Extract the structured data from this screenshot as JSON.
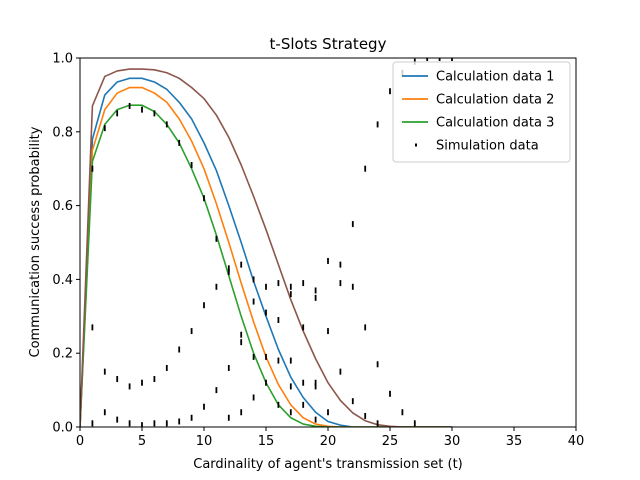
{
  "chart_data": {
    "type": "line",
    "title": "t-Slots Strategy",
    "xlabel": "Cardinality of agent's transmission set (t)",
    "ylabel": "Communication success probability",
    "xlim": [
      0,
      40
    ],
    "ylim": [
      0,
      1.0
    ],
    "xticks": [
      "0",
      "5",
      "10",
      "15",
      "20",
      "25",
      "30",
      "35",
      "40"
    ],
    "yticks": [
      "0.0",
      "0.2",
      "0.4",
      "0.6",
      "0.8",
      "1.0"
    ],
    "grid": false,
    "legend_position": "top-right",
    "series": [
      {
        "name": "Calculation data 1",
        "color": "#1f77b4",
        "x": [
          0,
          1,
          2,
          3,
          4,
          5,
          6,
          7,
          8,
          9,
          10,
          11,
          12,
          13,
          14,
          15,
          16,
          17,
          18,
          19,
          20,
          21,
          22,
          23,
          24,
          25,
          26,
          27,
          28,
          29,
          30
        ],
        "y": [
          0.0,
          0.78,
          0.9,
          0.935,
          0.945,
          0.945,
          0.935,
          0.915,
          0.88,
          0.835,
          0.77,
          0.695,
          0.6,
          0.5,
          0.395,
          0.3,
          0.21,
          0.135,
          0.08,
          0.04,
          0.015,
          0.005,
          0,
          0,
          0,
          0,
          0,
          0,
          0,
          0,
          0
        ]
      },
      {
        "name": "Calculation data 2",
        "color": "#ff7f0e",
        "x": [
          0,
          1,
          2,
          3,
          4,
          5,
          6,
          7,
          8,
          9,
          10,
          11,
          12,
          13,
          14,
          15,
          16,
          17,
          18,
          19,
          20,
          21,
          22,
          23,
          24,
          25,
          26,
          27,
          28,
          29,
          30
        ],
        "y": [
          0.0,
          0.75,
          0.86,
          0.905,
          0.92,
          0.92,
          0.905,
          0.88,
          0.835,
          0.775,
          0.7,
          0.605,
          0.5,
          0.39,
          0.285,
          0.19,
          0.115,
          0.06,
          0.025,
          0.008,
          0.002,
          0,
          0,
          0,
          0,
          0,
          0,
          0,
          0,
          0,
          0
        ]
      },
      {
        "name": "Calculation data 3",
        "color": "#2ca02c",
        "x": [
          0,
          1,
          2,
          3,
          4,
          5,
          6,
          7,
          8,
          9,
          10,
          11,
          12,
          13,
          14,
          15,
          16,
          17,
          18,
          19,
          20,
          21,
          22,
          23,
          24,
          25,
          26,
          27,
          28,
          29,
          30
        ],
        "y": [
          0.0,
          0.72,
          0.82,
          0.86,
          0.872,
          0.872,
          0.855,
          0.82,
          0.77,
          0.7,
          0.62,
          0.52,
          0.41,
          0.3,
          0.2,
          0.12,
          0.06,
          0.025,
          0.008,
          0.002,
          0,
          0,
          0,
          0,
          0,
          0,
          0,
          0,
          0,
          0,
          0
        ]
      },
      {
        "name": "",
        "color": "#8c564b",
        "x": [
          0,
          1,
          2,
          3,
          4,
          5,
          6,
          7,
          8,
          9,
          10,
          11,
          12,
          13,
          14,
          15,
          16,
          17,
          18,
          19,
          20,
          21,
          22,
          23,
          24,
          25,
          26,
          27,
          28,
          29,
          30
        ],
        "y": [
          0.0,
          0.87,
          0.95,
          0.965,
          0.97,
          0.97,
          0.968,
          0.96,
          0.945,
          0.92,
          0.89,
          0.845,
          0.785,
          0.71,
          0.625,
          0.535,
          0.44,
          0.345,
          0.26,
          0.185,
          0.12,
          0.072,
          0.038,
          0.017,
          0.006,
          0.002,
          0,
          0,
          0,
          0,
          0
        ]
      },
      {
        "name": "Simulation data",
        "kind": "scatter",
        "color": "#000000",
        "points": [
          [
            1,
            0.7
          ],
          [
            1,
            0.27
          ],
          [
            1,
            0.01
          ],
          [
            2,
            0.81
          ],
          [
            2,
            0.15
          ],
          [
            2,
            0.04
          ],
          [
            3,
            0.85
          ],
          [
            3,
            0.13
          ],
          [
            3,
            0.02
          ],
          [
            4,
            0.87
          ],
          [
            4,
            0.11
          ],
          [
            4,
            0.01
          ],
          [
            5,
            0.86
          ],
          [
            5,
            0.12
          ],
          [
            5,
            0.005
          ],
          [
            6,
            0.85
          ],
          [
            6,
            0.13
          ],
          [
            6,
            0.01
          ],
          [
            7,
            0.82
          ],
          [
            7,
            0.16
          ],
          [
            7,
            0.01
          ],
          [
            8,
            0.77
          ],
          [
            8,
            0.21
          ],
          [
            8,
            0.015
          ],
          [
            9,
            0.71
          ],
          [
            9,
            0.26
          ],
          [
            9,
            0.025
          ],
          [
            10,
            0.62
          ],
          [
            10,
            0.33
          ],
          [
            10,
            0.055
          ],
          [
            11,
            0.51
          ],
          [
            11,
            0.38
          ],
          [
            11,
            0.1
          ],
          [
            12,
            0.42
          ],
          [
            12,
            0.43
          ],
          [
            12,
            0.16
          ],
          [
            12,
            0.025
          ],
          [
            13,
            0.44
          ],
          [
            13,
            0.25
          ],
          [
            13,
            0.23
          ],
          [
            13,
            0.04
          ],
          [
            14,
            0.4
          ],
          [
            14,
            0.34
          ],
          [
            14,
            0.19
          ],
          [
            14,
            0.08
          ],
          [
            15,
            0.38
          ],
          [
            15,
            0.31
          ],
          [
            15,
            0.19
          ],
          [
            15,
            0.12
          ],
          [
            16,
            0.39
          ],
          [
            16,
            0.29
          ],
          [
            16,
            0.18
          ],
          [
            16,
            0.06
          ],
          [
            17,
            0.38
          ],
          [
            17,
            0.36
          ],
          [
            17,
            0.18
          ],
          [
            17,
            0.11
          ],
          [
            17,
            0.04
          ],
          [
            18,
            0.39
          ],
          [
            18,
            0.27
          ],
          [
            18,
            0.12
          ],
          [
            18,
            0.06
          ],
          [
            19,
            0.37
          ],
          [
            19,
            0.35
          ],
          [
            19,
            0.12
          ],
          [
            19,
            0.11
          ],
          [
            19,
            0.02
          ],
          [
            20,
            0.45
          ],
          [
            20,
            0.26
          ],
          [
            20,
            0.04
          ],
          [
            21,
            0.44
          ],
          [
            21,
            0.39
          ],
          [
            21,
            0.15
          ],
          [
            22,
            0.55
          ],
          [
            22,
            0.38
          ],
          [
            22,
            0.07
          ],
          [
            23,
            0.7
          ],
          [
            23,
            0.27
          ],
          [
            23,
            0.03
          ],
          [
            24,
            0.82
          ],
          [
            24,
            0.17
          ],
          [
            24,
            0.01
          ],
          [
            25,
            0.91
          ],
          [
            25,
            0.09
          ],
          [
            26,
            0.96
          ],
          [
            26,
            0.04
          ],
          [
            27,
            0.99
          ],
          [
            27,
            0.01
          ],
          [
            28,
            1.0
          ],
          [
            29,
            1.0
          ],
          [
            30,
            1.0
          ]
        ]
      }
    ]
  }
}
